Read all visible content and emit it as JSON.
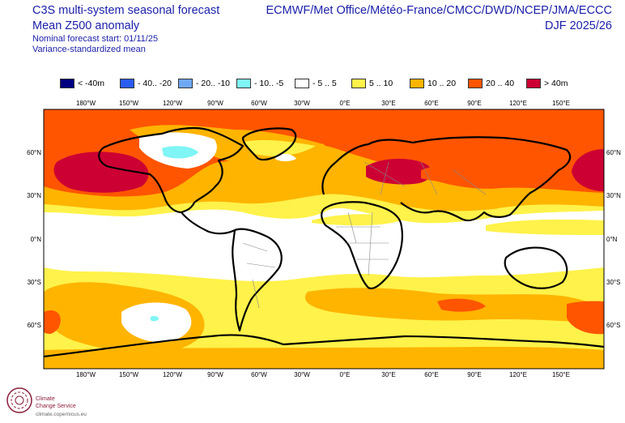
{
  "header": {
    "title_line1": "C3S multi-system seasonal forecast",
    "title_line2": "Mean Z500 anomaly",
    "subtitle_line1": "Nominal forecast start: 01/11/25",
    "subtitle_line2": "Variance-standardized mean",
    "centres": "ECMWF/Met Office/Météo-France/CMCC/DWD/NCEP/JMA/ECCC",
    "season": "DJF 2025/26"
  },
  "legend": [
    {
      "label": "< -40m",
      "color": "#000080"
    },
    {
      "label": "- 40.. -20",
      "color": "#2b5cf2"
    },
    {
      "label": "- 20.. -10",
      "color": "#6fa8f5"
    },
    {
      "label": "- 10.. -5",
      "color": "#7ff5f5"
    },
    {
      "label": "- 5 .. 5",
      "color": "#ffffff"
    },
    {
      "label": "5 .. 10",
      "color": "#fff24a"
    },
    {
      "label": "10 .. 20",
      "color": "#ffb400"
    },
    {
      "label": "20 .. 40",
      "color": "#ff5500"
    },
    {
      "label": "> 40m",
      "color": "#cc0033"
    }
  ],
  "axes": {
    "lon_labels": [
      "180°W",
      "150°W",
      "120°W",
      "90°W",
      "60°W",
      "30°W",
      "0°E",
      "30°E",
      "60°E",
      "90°E",
      "120°E",
      "150°E"
    ],
    "lat_labels": [
      "60°N",
      "30°N",
      "0°N",
      "30°S",
      "60°S"
    ]
  },
  "colors": {
    "land_outline": "#000000",
    "borders": "#888888"
  },
  "footer": {
    "brand_line1": "Climate",
    "brand_line2": "Change Service",
    "url": "climate.copernicus.eu"
  }
}
